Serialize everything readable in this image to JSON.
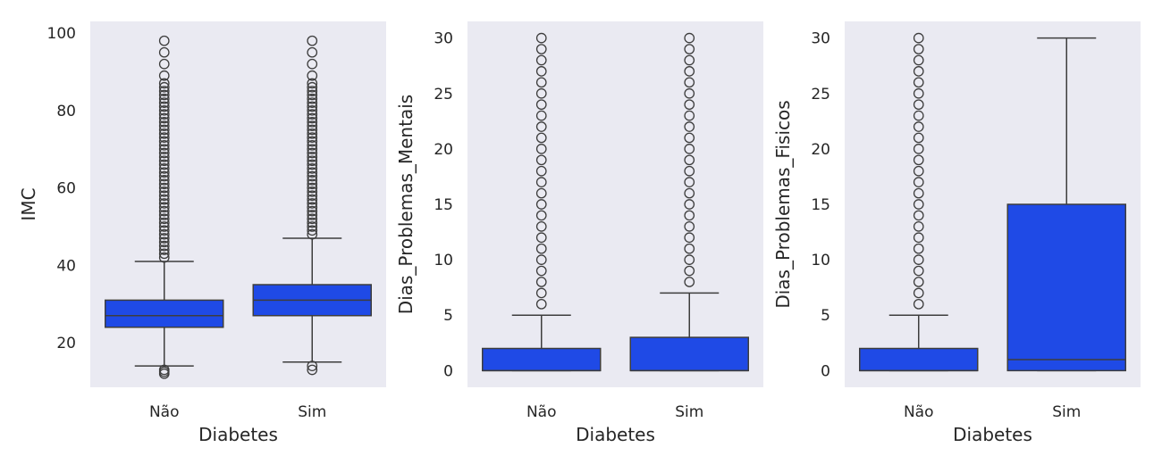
{
  "colors": {
    "background": "#ffffff",
    "panel": "#eaeaf2",
    "box_fill": "#1f4ae6",
    "line": "#3d3d3d"
  },
  "chart_data": [
    {
      "type": "boxplot",
      "xlabel": "Diabetes",
      "ylabel": "IMC",
      "categories": [
        "Não",
        "Sim"
      ],
      "ylim": [
        8.5,
        103
      ],
      "yticks": [
        20,
        40,
        60,
        80,
        100
      ],
      "grid": false,
      "boxes": [
        {
          "category": "Não",
          "q1": 24,
          "median": 27,
          "q3": 31,
          "whisker_low": 14,
          "whisker_high": 41,
          "outliers": [
            12,
            12.5,
            13,
            42,
            43,
            44,
            45,
            46,
            47,
            48,
            49,
            50,
            51,
            52,
            53,
            54,
            55,
            56,
            57,
            58,
            59,
            60,
            61,
            62,
            63,
            64,
            65,
            66,
            67,
            68,
            69,
            70,
            71,
            72,
            73,
            74,
            75,
            76,
            77,
            78,
            79,
            80,
            81,
            82,
            83,
            84,
            85,
            86,
            87,
            89,
            92,
            95,
            98
          ]
        },
        {
          "category": "Sim",
          "q1": 27,
          "median": 31,
          "q3": 35,
          "whisker_low": 15,
          "whisker_high": 47,
          "outliers": [
            13,
            14,
            48,
            49,
            50,
            51,
            52,
            53,
            54,
            55,
            56,
            57,
            58,
            59,
            60,
            61,
            62,
            63,
            64,
            65,
            66,
            67,
            68,
            69,
            70,
            71,
            72,
            73,
            74,
            75,
            76,
            77,
            78,
            79,
            80,
            81,
            82,
            83,
            84,
            85,
            86,
            87,
            89,
            92,
            95,
            98
          ]
        }
      ]
    },
    {
      "type": "boxplot",
      "xlabel": "Diabetes",
      "ylabel": "Dias_Problemas_Mentais",
      "categories": [
        "Não",
        "Sim"
      ],
      "ylim": [
        -1.5,
        31.5
      ],
      "yticks": [
        0,
        5,
        10,
        15,
        20,
        25,
        30
      ],
      "grid": false,
      "boxes": [
        {
          "category": "Não",
          "q1": 0,
          "median": 0,
          "q3": 2,
          "whisker_low": 0,
          "whisker_high": 5,
          "outliers": [
            6,
            7,
            8,
            9,
            10,
            11,
            12,
            13,
            14,
            15,
            16,
            17,
            18,
            19,
            20,
            21,
            22,
            23,
            24,
            25,
            26,
            27,
            28,
            29,
            30
          ]
        },
        {
          "category": "Sim",
          "q1": 0,
          "median": 0,
          "q3": 3,
          "whisker_low": 0,
          "whisker_high": 7,
          "outliers": [
            8,
            9,
            10,
            11,
            12,
            13,
            14,
            15,
            16,
            17,
            18,
            19,
            20,
            21,
            22,
            23,
            24,
            25,
            26,
            27,
            28,
            29,
            30
          ]
        }
      ]
    },
    {
      "type": "boxplot",
      "xlabel": "Diabetes",
      "ylabel": "Dias_Problemas_Fisicos",
      "categories": [
        "Não",
        "Sim"
      ],
      "ylim": [
        -1.5,
        31.5
      ],
      "yticks": [
        0,
        5,
        10,
        15,
        20,
        25,
        30
      ],
      "grid": false,
      "boxes": [
        {
          "category": "Não",
          "q1": 0,
          "median": 0,
          "q3": 2,
          "whisker_low": 0,
          "whisker_high": 5,
          "outliers": [
            6,
            7,
            8,
            9,
            10,
            11,
            12,
            13,
            14,
            15,
            16,
            17,
            18,
            19,
            20,
            21,
            22,
            23,
            24,
            25,
            26,
            27,
            28,
            29,
            30
          ]
        },
        {
          "category": "Sim",
          "q1": 0,
          "median": 1,
          "q3": 15,
          "whisker_low": 0,
          "whisker_high": 30,
          "outliers": []
        }
      ]
    }
  ]
}
